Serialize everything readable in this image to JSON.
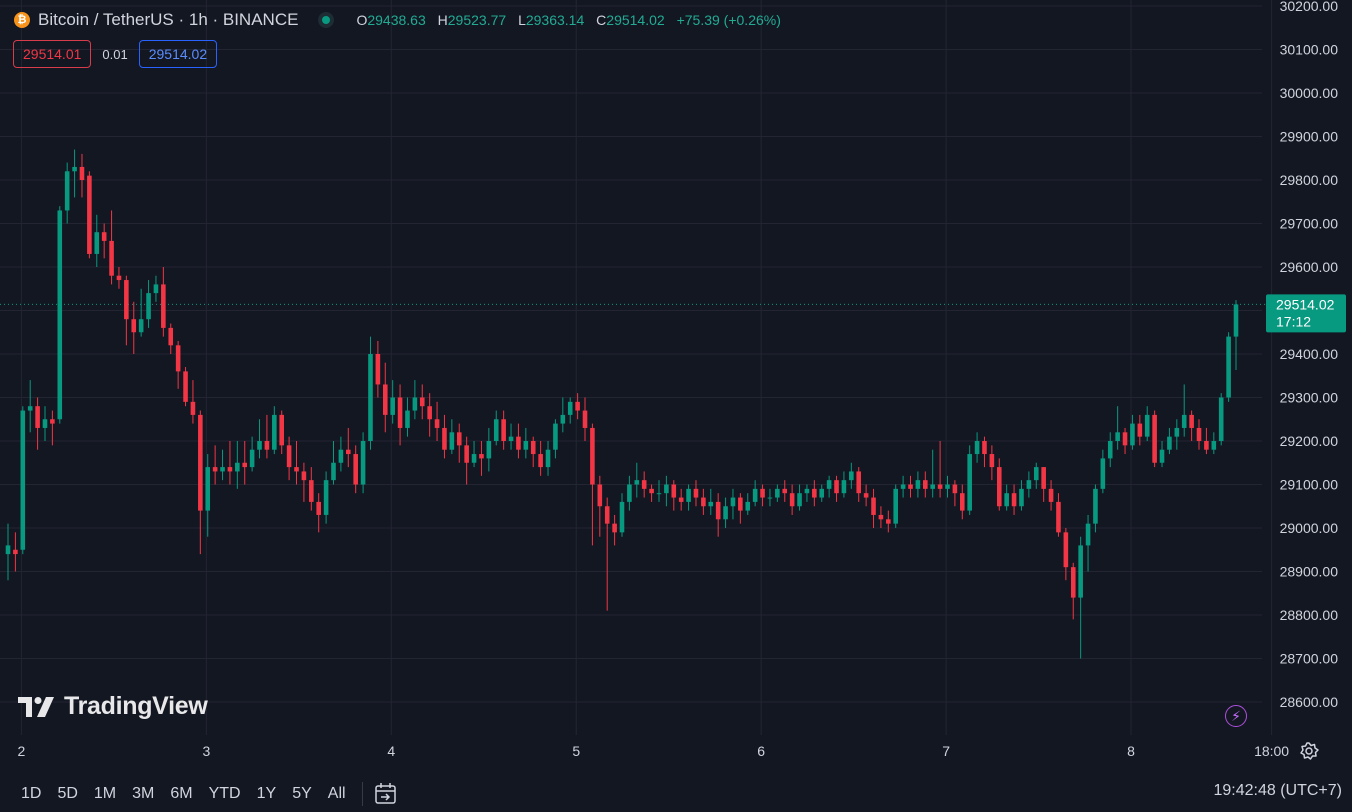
{
  "header": {
    "symbol_title": "Bitcoin / TetherUS · 1h · BINANCE",
    "coin_icon": "bitcoin-icon",
    "ohlc": {
      "open_label": "O",
      "open": "29438.63",
      "high_label": "H",
      "high": "29523.77",
      "low_label": "L",
      "low": "29363.14",
      "close_label": "C",
      "close": "29514.02",
      "change": "+75.39 (+0.26%)"
    }
  },
  "quote": {
    "bid": "29514.01",
    "spread": "0.01",
    "ask": "29514.02"
  },
  "price_tag": {
    "price": "29514.02",
    "countdown": "17:12"
  },
  "brand": "TradingView",
  "toolbar": {
    "timeframes": [
      "1D",
      "5D",
      "1M",
      "3M",
      "6M",
      "YTD",
      "1Y",
      "5Y",
      "All"
    ],
    "clock": "19:42:48 (UTC+7)"
  },
  "colors": {
    "up": "#089981",
    "down": "#f23645",
    "background": "#131722",
    "grid": "#232632",
    "text": "#d1d4dc"
  },
  "chart_data": {
    "type": "candlestick",
    "title": "Bitcoin / TetherUS · 1h · BINANCE",
    "ylim": [
      28600,
      30200
    ],
    "y_ticks": [
      30200,
      30100,
      30000,
      29900,
      29800,
      29700,
      29600,
      29500,
      29400,
      29300,
      29200,
      29100,
      29000,
      28900,
      28800,
      28700,
      28600
    ],
    "y_tick_labels": [
      "30200.00",
      "30100.00",
      "30000.00",
      "29900.00",
      "29800.00",
      "29700.00",
      "29600.00",
      "29500.00",
      "29400.00",
      "29300.00",
      "29200.00",
      "29100.00",
      "29000.00",
      "28900.00",
      "28800.00",
      "28700.00",
      "28600.00"
    ],
    "x_tick_labels": [
      "2",
      "3",
      "4",
      "5",
      "6",
      "7",
      "8",
      "18:00"
    ],
    "last_price": 29514.02,
    "grid": true,
    "candles": [
      [
        28940,
        28960,
        28880,
        29010
      ],
      [
        28950,
        28940,
        28900,
        28990
      ],
      [
        28950,
        29270,
        28940,
        29280
      ],
      [
        29270,
        29280,
        29220,
        29340
      ],
      [
        29280,
        29230,
        29180,
        29300
      ],
      [
        29230,
        29250,
        29200,
        29280
      ],
      [
        29250,
        29240,
        29190,
        29270
      ],
      [
        29250,
        29730,
        29240,
        29740
      ],
      [
        29730,
        29820,
        29700,
        29840
      ],
      [
        29820,
        29830,
        29760,
        29870
      ],
      [
        29830,
        29800,
        29760,
        29860
      ],
      [
        29810,
        29630,
        29620,
        29820
      ],
      [
        29630,
        29680,
        29600,
        29720
      ],
      [
        29680,
        29660,
        29620,
        29700
      ],
      [
        29660,
        29580,
        29560,
        29730
      ],
      [
        29580,
        29570,
        29550,
        29600
      ],
      [
        29570,
        29480,
        29420,
        29580
      ],
      [
        29480,
        29450,
        29400,
        29520
      ],
      [
        29450,
        29480,
        29440,
        29550
      ],
      [
        29480,
        29540,
        29460,
        29570
      ],
      [
        29540,
        29560,
        29520,
        29580
      ],
      [
        29560,
        29460,
        29440,
        29600
      ],
      [
        29460,
        29420,
        29400,
        29470
      ],
      [
        29420,
        29360,
        29320,
        29430
      ],
      [
        29360,
        29290,
        29280,
        29370
      ],
      [
        29290,
        29260,
        29240,
        29340
      ],
      [
        29260,
        29040,
        28940,
        29270
      ],
      [
        29040,
        29140,
        28980,
        29170
      ],
      [
        29140,
        29130,
        29100,
        29190
      ],
      [
        29130,
        29140,
        29110,
        29180
      ],
      [
        29140,
        29130,
        29100,
        29200
      ],
      [
        29130,
        29150,
        29090,
        29200
      ],
      [
        29150,
        29140,
        29100,
        29200
      ],
      [
        29140,
        29180,
        29130,
        29210
      ],
      [
        29180,
        29200,
        29160,
        29250
      ],
      [
        29200,
        29180,
        29160,
        29260
      ],
      [
        29180,
        29260,
        29170,
        29280
      ],
      [
        29260,
        29190,
        29170,
        29270
      ],
      [
        29190,
        29140,
        29110,
        29210
      ],
      [
        29140,
        29130,
        29100,
        29200
      ],
      [
        29130,
        29110,
        29060,
        29150
      ],
      [
        29110,
        29060,
        29040,
        29140
      ],
      [
        29060,
        29030,
        28990,
        29080
      ],
      [
        29030,
        29110,
        29010,
        29130
      ],
      [
        29110,
        29150,
        29100,
        29200
      ],
      [
        29150,
        29180,
        29130,
        29210
      ],
      [
        29180,
        29170,
        29140,
        29230
      ],
      [
        29170,
        29100,
        29080,
        29190
      ],
      [
        29100,
        29200,
        29080,
        29220
      ],
      [
        29200,
        29400,
        29180,
        29440
      ],
      [
        29400,
        29330,
        29300,
        29430
      ],
      [
        29330,
        29260,
        29220,
        29380
      ],
      [
        29260,
        29300,
        29240,
        29340
      ],
      [
        29300,
        29230,
        29190,
        29330
      ],
      [
        29230,
        29270,
        29210,
        29300
      ],
      [
        29270,
        29300,
        29250,
        29340
      ],
      [
        29300,
        29280,
        29250,
        29330
      ],
      [
        29280,
        29250,
        29210,
        29310
      ],
      [
        29250,
        29230,
        29200,
        29290
      ],
      [
        29230,
        29180,
        29160,
        29260
      ],
      [
        29180,
        29220,
        29170,
        29250
      ],
      [
        29220,
        29190,
        29150,
        29240
      ],
      [
        29190,
        29150,
        29100,
        29210
      ],
      [
        29150,
        29170,
        29140,
        29200
      ],
      [
        29170,
        29160,
        29120,
        29200
      ],
      [
        29160,
        29200,
        29130,
        29230
      ],
      [
        29200,
        29250,
        29190,
        29270
      ],
      [
        29250,
        29200,
        29180,
        29270
      ],
      [
        29200,
        29210,
        29180,
        29240
      ],
      [
        29210,
        29180,
        29160,
        29240
      ],
      [
        29180,
        29200,
        29160,
        29230
      ],
      [
        29200,
        29170,
        29140,
        29210
      ],
      [
        29170,
        29140,
        29120,
        29200
      ],
      [
        29140,
        29180,
        29120,
        29200
      ],
      [
        29180,
        29240,
        29160,
        29250
      ],
      [
        29240,
        29260,
        29220,
        29300
      ],
      [
        29260,
        29290,
        29240,
        29300
      ],
      [
        29290,
        29270,
        29250,
        29310
      ],
      [
        29270,
        29230,
        29200,
        29300
      ],
      [
        29230,
        29100,
        28960,
        29240
      ],
      [
        29100,
        29050,
        28980,
        29120
      ],
      [
        29050,
        29010,
        28810,
        29070
      ],
      [
        29010,
        28990,
        28960,
        29030
      ],
      [
        28990,
        29060,
        28980,
        29080
      ],
      [
        29060,
        29100,
        29040,
        29120
      ],
      [
        29100,
        29110,
        29070,
        29150
      ],
      [
        29110,
        29090,
        29070,
        29130
      ],
      [
        29090,
        29080,
        29060,
        29100
      ],
      [
        29080,
        29080,
        29060,
        29110
      ],
      [
        29080,
        29100,
        29050,
        29120
      ],
      [
        29100,
        29070,
        29040,
        29110
      ],
      [
        29070,
        29060,
        29040,
        29090
      ],
      [
        29060,
        29090,
        29040,
        29100
      ],
      [
        29090,
        29070,
        29050,
        29110
      ],
      [
        29070,
        29050,
        29030,
        29090
      ],
      [
        29050,
        29060,
        29030,
        29090
      ],
      [
        29060,
        29020,
        28980,
        29080
      ],
      [
        29020,
        29050,
        29000,
        29070
      ],
      [
        29050,
        29070,
        29020,
        29090
      ],
      [
        29070,
        29040,
        29010,
        29080
      ],
      [
        29040,
        29060,
        29030,
        29080
      ],
      [
        29060,
        29090,
        29050,
        29110
      ],
      [
        29090,
        29070,
        29050,
        29100
      ],
      [
        29070,
        29070,
        29050,
        29090
      ],
      [
        29070,
        29090,
        29060,
        29100
      ],
      [
        29090,
        29080,
        29060,
        29110
      ],
      [
        29080,
        29050,
        29030,
        29100
      ],
      [
        29050,
        29080,
        29040,
        29100
      ],
      [
        29080,
        29090,
        29060,
        29100
      ],
      [
        29090,
        29070,
        29050,
        29110
      ],
      [
        29070,
        29090,
        29060,
        29100
      ],
      [
        29090,
        29110,
        29070,
        29120
      ],
      [
        29110,
        29080,
        29060,
        29120
      ],
      [
        29080,
        29110,
        29070,
        29130
      ],
      [
        29110,
        29130,
        29090,
        29150
      ],
      [
        29130,
        29080,
        29060,
        29140
      ],
      [
        29080,
        29070,
        29050,
        29100
      ],
      [
        29070,
        29030,
        29000,
        29090
      ],
      [
        29030,
        29020,
        29000,
        29050
      ],
      [
        29020,
        29010,
        28990,
        29040
      ],
      [
        29010,
        29090,
        29000,
        29100
      ],
      [
        29090,
        29100,
        29070,
        29120
      ],
      [
        29100,
        29090,
        29070,
        29120
      ],
      [
        29090,
        29110,
        29070,
        29130
      ],
      [
        29110,
        29090,
        29070,
        29130
      ],
      [
        29090,
        29100,
        29070,
        29180
      ],
      [
        29100,
        29090,
        29070,
        29200
      ],
      [
        29090,
        29100,
        29070,
        29120
      ],
      [
        29100,
        29080,
        29050,
        29110
      ],
      [
        29080,
        29040,
        29020,
        29100
      ],
      [
        29040,
        29170,
        29030,
        29190
      ],
      [
        29170,
        29200,
        29150,
        29220
      ],
      [
        29200,
        29170,
        29140,
        29210
      ],
      [
        29170,
        29140,
        29110,
        29190
      ],
      [
        29140,
        29050,
        29040,
        29160
      ],
      [
        29050,
        29080,
        29040,
        29100
      ],
      [
        29080,
        29050,
        29030,
        29100
      ],
      [
        29050,
        29090,
        29040,
        29110
      ],
      [
        29090,
        29110,
        29070,
        29130
      ],
      [
        29110,
        29140,
        29090,
        29150
      ],
      [
        29140,
        29090,
        29060,
        29140
      ],
      [
        29090,
        29060,
        29040,
        29110
      ],
      [
        29060,
        28990,
        28980,
        29080
      ],
      [
        28990,
        28910,
        28880,
        29000
      ],
      [
        28910,
        28840,
        28790,
        28920
      ],
      [
        28840,
        28960,
        28700,
        28980
      ],
      [
        28960,
        29010,
        28900,
        29030
      ],
      [
        29010,
        29090,
        28990,
        29100
      ],
      [
        29090,
        29160,
        29080,
        29180
      ],
      [
        29160,
        29200,
        29140,
        29220
      ],
      [
        29200,
        29220,
        29180,
        29280
      ],
      [
        29220,
        29190,
        29170,
        29230
      ],
      [
        29190,
        29240,
        29180,
        29260
      ],
      [
        29240,
        29210,
        29190,
        29260
      ],
      [
        29210,
        29260,
        29200,
        29280
      ],
      [
        29260,
        29150,
        29140,
        29270
      ],
      [
        29150,
        29180,
        29140,
        29200
      ],
      [
        29180,
        29210,
        29170,
        29230
      ],
      [
        29210,
        29230,
        29180,
        29250
      ],
      [
        29230,
        29260,
        29210,
        29330
      ],
      [
        29260,
        29230,
        29200,
        29270
      ],
      [
        29230,
        29200,
        29180,
        29250
      ],
      [
        29200,
        29180,
        29170,
        29230
      ],
      [
        29180,
        29200,
        29170,
        29220
      ],
      [
        29200,
        29300,
        29190,
        29310
      ],
      [
        29300,
        29440,
        29290,
        29450
      ],
      [
        29440,
        29514.02,
        29363.14,
        29523.77
      ]
    ]
  }
}
